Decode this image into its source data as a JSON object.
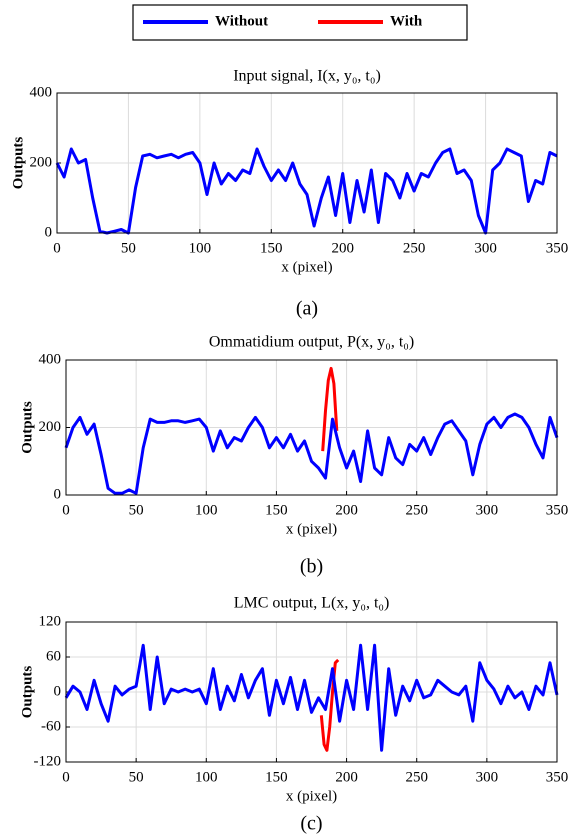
{
  "legend": [
    {
      "name": "Without",
      "color": "#0000ff"
    },
    {
      "name": "With",
      "color": "#ff0000"
    }
  ],
  "chart_data": [
    {
      "type": "line",
      "title": "Input signal, I(x, y₀, t₀)",
      "x_label": "x (pixel)",
      "y_label": "Outputs",
      "label": "(a)",
      "xlim": [
        0,
        350
      ],
      "xticks": [
        0,
        50,
        100,
        150,
        200,
        250,
        300,
        350
      ],
      "ylim": [
        0,
        400
      ],
      "yticks": [
        0,
        200,
        400
      ],
      "grid": true,
      "series": [
        {
          "color": "#0000ff",
          "x": [
            0,
            5,
            10,
            15,
            20,
            25,
            30,
            35,
            40,
            45,
            50,
            55,
            60,
            65,
            70,
            75,
            80,
            85,
            90,
            95,
            100,
            105,
            110,
            115,
            120,
            125,
            130,
            135,
            140,
            145,
            150,
            155,
            160,
            165,
            170,
            175,
            180,
            185,
            190,
            195,
            200,
            205,
            210,
            215,
            220,
            225,
            230,
            235,
            240,
            245,
            250,
            255,
            260,
            265,
            270,
            275,
            280,
            285,
            290,
            295,
            300,
            305,
            310,
            315,
            320,
            325,
            330,
            335,
            340,
            345,
            350
          ],
          "values": [
            200,
            160,
            240,
            200,
            210,
            100,
            5,
            0,
            5,
            10,
            0,
            130,
            220,
            225,
            215,
            220,
            225,
            215,
            225,
            230,
            200,
            110,
            200,
            140,
            170,
            150,
            180,
            170,
            240,
            190,
            150,
            180,
            150,
            200,
            140,
            110,
            20,
            100,
            160,
            50,
            170,
            30,
            150,
            60,
            180,
            30,
            170,
            150,
            100,
            170,
            120,
            170,
            160,
            200,
            230,
            240,
            170,
            180,
            150,
            50,
            0,
            180,
            200,
            240,
            230,
            220,
            90,
            150,
            140,
            230,
            220
          ]
        }
      ]
    },
    {
      "type": "line",
      "title": "Ommatidium output, P(x, y₀, t₀)",
      "x_label": "x (pixel)",
      "y_label": "Outputs",
      "label": "(b)",
      "xlim": [
        0,
        350
      ],
      "xticks": [
        0,
        50,
        100,
        150,
        200,
        250,
        300,
        350
      ],
      "ylim": [
        0,
        400
      ],
      "yticks": [
        0,
        200,
        400
      ],
      "grid": true,
      "series": [
        {
          "color": "#ff0000",
          "x": [
            183,
            185,
            187,
            189,
            191,
            193
          ],
          "values": [
            130,
            250,
            340,
            375,
            330,
            190
          ]
        },
        {
          "color": "#0000ff",
          "x": [
            0,
            5,
            10,
            15,
            20,
            25,
            30,
            35,
            40,
            45,
            50,
            55,
            60,
            65,
            70,
            75,
            80,
            85,
            90,
            95,
            100,
            105,
            110,
            115,
            120,
            125,
            130,
            135,
            140,
            145,
            150,
            155,
            160,
            165,
            170,
            175,
            180,
            185,
            190,
            195,
            200,
            205,
            210,
            215,
            220,
            225,
            230,
            235,
            240,
            245,
            250,
            255,
            260,
            265,
            270,
            275,
            280,
            285,
            290,
            295,
            300,
            305,
            310,
            315,
            320,
            325,
            330,
            335,
            340,
            345,
            350
          ],
          "values": [
            140,
            200,
            230,
            180,
            210,
            120,
            20,
            5,
            5,
            15,
            5,
            140,
            225,
            215,
            215,
            220,
            220,
            215,
            220,
            225,
            200,
            130,
            190,
            140,
            170,
            160,
            200,
            230,
            200,
            140,
            170,
            140,
            180,
            130,
            160,
            100,
            80,
            50,
            225,
            140,
            80,
            130,
            40,
            190,
            80,
            60,
            170,
            110,
            90,
            150,
            130,
            170,
            120,
            170,
            210,
            220,
            190,
            160,
            60,
            150,
            210,
            230,
            200,
            230,
            240,
            230,
            200,
            150,
            110,
            230,
            170
          ]
        }
      ]
    },
    {
      "type": "line",
      "title": "LMC output, L(x, y₀, t₀)",
      "x_label": "x (pixel)",
      "y_label": "Outputs",
      "label": "(c)",
      "xlim": [
        0,
        350
      ],
      "xticks": [
        0,
        50,
        100,
        150,
        200,
        250,
        300,
        350
      ],
      "ylim": [
        -120,
        120
      ],
      "yticks": [
        -120,
        -60,
        0,
        60,
        120
      ],
      "grid": true,
      "series": [
        {
          "color": "#ff0000",
          "x": [
            182,
            184,
            186,
            188,
            190,
            192,
            194
          ],
          "values": [
            -40,
            -90,
            -100,
            -60,
            0,
            50,
            55
          ]
        },
        {
          "color": "#0000ff",
          "x": [
            0,
            5,
            10,
            15,
            20,
            25,
            30,
            35,
            40,
            45,
            50,
            55,
            60,
            65,
            70,
            75,
            80,
            85,
            90,
            95,
            100,
            105,
            110,
            115,
            120,
            125,
            130,
            135,
            140,
            145,
            150,
            155,
            160,
            165,
            170,
            175,
            180,
            185,
            190,
            195,
            200,
            205,
            210,
            215,
            220,
            225,
            230,
            235,
            240,
            245,
            250,
            255,
            260,
            265,
            270,
            275,
            280,
            285,
            290,
            295,
            300,
            305,
            310,
            315,
            320,
            325,
            330,
            335,
            340,
            345,
            350
          ],
          "values": [
            -10,
            10,
            0,
            -30,
            20,
            -20,
            -50,
            10,
            -5,
            5,
            10,
            80,
            -30,
            60,
            -20,
            5,
            0,
            5,
            0,
            5,
            -20,
            40,
            -30,
            10,
            -15,
            30,
            -10,
            20,
            40,
            -40,
            20,
            -20,
            25,
            -30,
            20,
            -35,
            -10,
            -30,
            40,
            -50,
            20,
            -30,
            80,
            -30,
            80,
            -100,
            40,
            -40,
            10,
            -15,
            20,
            -10,
            -5,
            20,
            10,
            0,
            -5,
            10,
            -50,
            50,
            20,
            5,
            -20,
            10,
            -10,
            0,
            -30,
            10,
            -5,
            50,
            -5
          ]
        }
      ]
    }
  ]
}
